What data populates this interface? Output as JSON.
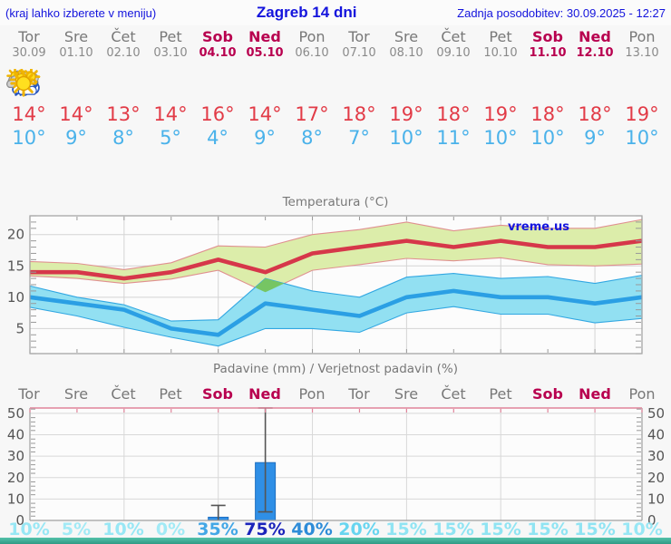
{
  "header": {
    "left_note": "(kraj lahko izberete v meniju)",
    "title": "Zagreb 14 dni",
    "updated": "Zadnja posodobitev: 30.09.2025 - 12:27"
  },
  "days": [
    {
      "name": "Tor",
      "date": "30.09",
      "weekend": false,
      "icon": "cloudy",
      "high": "14°",
      "low": "10°"
    },
    {
      "name": "Sre",
      "date": "01.10",
      "weekend": false,
      "icon": "partly-sunny",
      "high": "14°",
      "low": "9°"
    },
    {
      "name": "Čet",
      "date": "02.10",
      "weekend": false,
      "icon": "partly-sunny",
      "high": "13°",
      "low": "8°"
    },
    {
      "name": "Pet",
      "date": "03.10",
      "weekend": false,
      "icon": "sunny",
      "high": "14°",
      "low": "5°"
    },
    {
      "name": "Sob",
      "date": "04.10",
      "weekend": true,
      "icon": "rain",
      "high": "16°",
      "low": "4°"
    },
    {
      "name": "Ned",
      "date": "05.10",
      "weekend": true,
      "icon": "sun-rain",
      "high": "14°",
      "low": "9°"
    },
    {
      "name": "Pon",
      "date": "06.10",
      "weekend": false,
      "icon": "partly-sunny",
      "high": "17°",
      "low": "8°"
    },
    {
      "name": "Tor",
      "date": "07.10",
      "weekend": false,
      "icon": "mostly-sunny",
      "high": "18°",
      "low": "7°"
    },
    {
      "name": "Sre",
      "date": "08.10",
      "weekend": false,
      "icon": "sunny",
      "high": "19°",
      "low": "10°"
    },
    {
      "name": "Čet",
      "date": "09.10",
      "weekend": false,
      "icon": "sunny",
      "high": "18°",
      "low": "11°"
    },
    {
      "name": "Pet",
      "date": "10.10",
      "weekend": false,
      "icon": "sunny",
      "high": "19°",
      "low": "10°"
    },
    {
      "name": "Sob",
      "date": "11.10",
      "weekend": true,
      "icon": "sunny",
      "high": "18°",
      "low": "10°"
    },
    {
      "name": "Ned",
      "date": "12.10",
      "weekend": true,
      "icon": "sunny",
      "high": "18°",
      "low": "9°"
    },
    {
      "name": "Pon",
      "date": "13.10",
      "weekend": false,
      "icon": "sunny",
      "high": "19°",
      "low": "10°"
    }
  ],
  "chart_data": [
    {
      "type": "area",
      "title": "Temperatura (°C)",
      "watermark": "vreme.us",
      "categories": [
        "Tor",
        "Sre",
        "Čet",
        "Pet",
        "Sob",
        "Ned",
        "Pon",
        "Tor",
        "Sre",
        "Čet",
        "Pet",
        "Sob",
        "Ned",
        "Pon"
      ],
      "ylim": [
        1,
        23
      ],
      "yticks": [
        5,
        10,
        15,
        20
      ],
      "grid_every_days": 2,
      "series": [
        {
          "name": "max-temperature",
          "values": [
            14,
            14,
            13,
            14,
            16,
            14,
            17,
            18,
            19,
            18,
            19,
            18,
            18,
            19
          ],
          "color": "#d6374a"
        },
        {
          "name": "max-range-upper",
          "values": [
            15.7,
            15.4,
            14.4,
            15.5,
            18.2,
            18.0,
            20.0,
            20.8,
            22.0,
            20.6,
            21.5,
            21.0,
            21.0,
            22.4
          ]
        },
        {
          "name": "max-range-lower",
          "values": [
            13.4,
            13.0,
            12.2,
            12.9,
            14.3,
            10.8,
            14.3,
            15.2,
            16.2,
            15.8,
            16.3,
            15.2,
            15.0,
            15.3
          ]
        },
        {
          "name": "min-temperature",
          "values": [
            10,
            9,
            8,
            5,
            4,
            9,
            8,
            7,
            10,
            11,
            10,
            10,
            9,
            10
          ],
          "color": "#2b9fe4"
        },
        {
          "name": "min-range-upper",
          "values": [
            11.8,
            10.0,
            8.8,
            6.2,
            6.4,
            13.0,
            11.0,
            10.0,
            13.2,
            13.8,
            13.0,
            13.3,
            12.2,
            13.5
          ]
        },
        {
          "name": "min-range-lower",
          "values": [
            8.4,
            7.0,
            5.2,
            3.6,
            2.2,
            5.0,
            5.0,
            4.4,
            7.5,
            8.5,
            7.3,
            7.3,
            5.9,
            6.6
          ]
        }
      ],
      "band_colors": {
        "max_fill": "#dcedaa",
        "max_edge": "#e09090",
        "min_fill": "#92e0f2",
        "min_edge": "#31a7e2",
        "overlap_fill": "#76c563"
      }
    },
    {
      "type": "bar",
      "title": "Padavine (mm) / Verjetnost padavin (%)",
      "categories": [
        "Tor",
        "Sre",
        "Čet",
        "Pet",
        "Sob",
        "Ned",
        "Pon",
        "Tor",
        "Sre",
        "Čet",
        "Pet",
        "Sob",
        "Ned",
        "Pon"
      ],
      "weekend_index": [
        4,
        5,
        11,
        12
      ],
      "ylim": [
        0,
        52.5
      ],
      "yticks": [
        0,
        10,
        20,
        30,
        40,
        50
      ],
      "bars": [
        {
          "day_index": 4,
          "value": 1.5,
          "whisker_low": 0,
          "whisker_high": 7
        },
        {
          "day_index": 5,
          "value": 27,
          "whisker_low": 4,
          "whisker_high": 52.5
        }
      ],
      "bar_color": "#2f8fe6",
      "probabilities": [
        {
          "label": "10%",
          "color": "#98e7f5"
        },
        {
          "label": "5%",
          "color": "#a2eaf6"
        },
        {
          "label": "10%",
          "color": "#98e7f5"
        },
        {
          "label": "0%",
          "color": "#a2eaf6"
        },
        {
          "label": "35%",
          "color": "#43a7e6"
        },
        {
          "label": "75%",
          "color": "#1b24bb"
        },
        {
          "label": "40%",
          "color": "#2e8cd8"
        },
        {
          "label": "20%",
          "color": "#67d5f0"
        },
        {
          "label": "15%",
          "color": "#90e4f3"
        },
        {
          "label": "15%",
          "color": "#90e4f3"
        },
        {
          "label": "15%",
          "color": "#90e4f3"
        },
        {
          "label": "15%",
          "color": "#90e4f3"
        },
        {
          "label": "15%",
          "color": "#90e4f3"
        },
        {
          "label": "10%",
          "color": "#98e7f5"
        }
      ]
    }
  ]
}
